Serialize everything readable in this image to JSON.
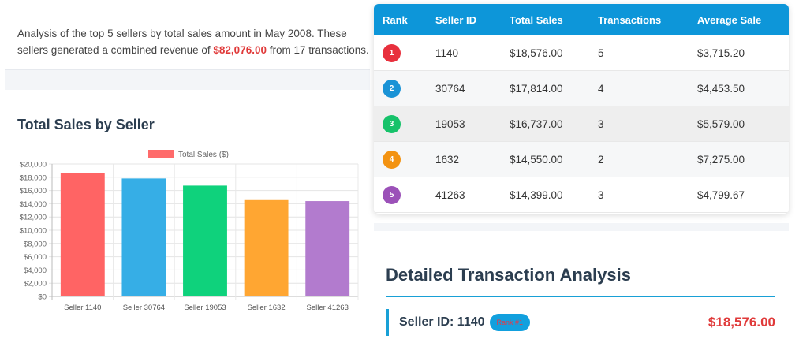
{
  "summary": {
    "text_before": "Analysis of the top 5 sellers by total sales amount in May 2008. These sellers generated a combined revenue of ",
    "revenue": "$82,076.00",
    "text_after": " from 17 transactions."
  },
  "chart_section": {
    "title": "Total Sales by Seller"
  },
  "chart_data": {
    "type": "bar",
    "title": "",
    "legend": {
      "label": "Total Sales ($)",
      "position": "top",
      "color": "#ff6b6b"
    },
    "categories": [
      "Seller 1140",
      "Seller 30764",
      "Seller 19053",
      "Seller 1632",
      "Seller 41263"
    ],
    "values": [
      18576,
      17814,
      16737,
      14550,
      14399
    ],
    "colors": [
      "#ff6464",
      "#36aee6",
      "#0fd27c",
      "#ffa632",
      "#b27bce"
    ],
    "ylim": [
      0,
      20000
    ],
    "yticks": [
      "$0",
      "$2,000",
      "$4,000",
      "$6,000",
      "$8,000",
      "$10,000",
      "$12,000",
      "$14,000",
      "$16,000",
      "$18,000",
      "$20,000"
    ],
    "grid": true,
    "xlabel": "",
    "ylabel": ""
  },
  "table": {
    "headers": [
      "Rank",
      "Seller ID",
      "Total Sales",
      "Transactions",
      "Average Sale"
    ],
    "rows": [
      {
        "rank": "1",
        "rank_color": "#e8303d",
        "seller_id": "1140",
        "total": "$18,576.00",
        "transactions": "5",
        "average": "$3,715.20"
      },
      {
        "rank": "2",
        "rank_color": "#1a93d6",
        "seller_id": "30764",
        "total": "$17,814.00",
        "transactions": "4",
        "average": "$4,453.50"
      },
      {
        "rank": "3",
        "rank_color": "#16c26a",
        "seller_id": "19053",
        "total": "$16,737.00",
        "transactions": "3",
        "average": "$5,579.00"
      },
      {
        "rank": "4",
        "rank_color": "#f39312",
        "seller_id": "1632",
        "total": "$14,550.00",
        "transactions": "2",
        "average": "$7,275.00"
      },
      {
        "rank": "5",
        "rank_color": "#9b51b8",
        "seller_id": "41263",
        "total": "$14,399.00",
        "transactions": "3",
        "average": "$4,799.67"
      }
    ]
  },
  "detail": {
    "title": "Detailed Transaction Analysis",
    "seller_label": "Seller ID: 1140",
    "rank_badge": "Rank #1",
    "total": "$18,576.00"
  }
}
